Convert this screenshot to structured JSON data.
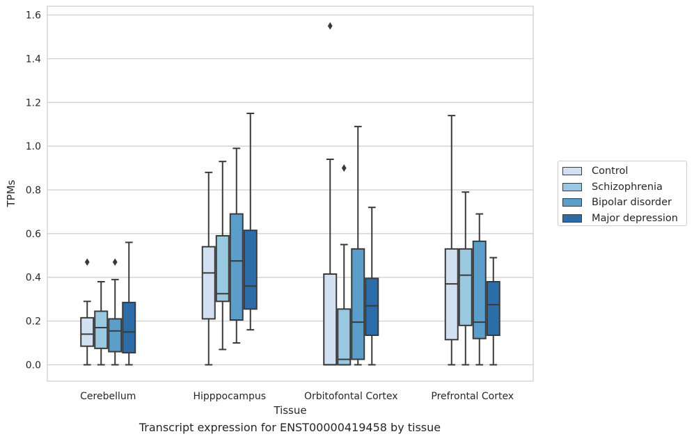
{
  "caption": "Transcript expression for ENST00000419458 by tissue",
  "chart_data": {
    "type": "box",
    "title": "",
    "xlabel": "Tissue",
    "ylabel": "TPMs",
    "ylim": [
      -0.075,
      1.64
    ],
    "yticks": [
      "0.0",
      "0.2",
      "0.4",
      "0.6",
      "0.8",
      "1.0",
      "1.2",
      "1.4",
      "1.6"
    ],
    "ytick_values": [
      0.0,
      0.2,
      0.4,
      0.6,
      0.8,
      1.0,
      1.2,
      1.4,
      1.6
    ],
    "grid": "horizontal",
    "legend_position": "right",
    "categories": [
      "Cerebellum",
      "Hipppocampus",
      "Orbitofontal Cortex",
      "Prefrontal Cortex"
    ],
    "series": [
      {
        "name": "Control",
        "color": "#d1e1f2",
        "boxes": [
          {
            "whislo": 0.0,
            "q1": 0.085,
            "med": 0.14,
            "q3": 0.215,
            "whishi": 0.29,
            "fliers": [
              0.47
            ]
          },
          {
            "whislo": 0.0,
            "q1": 0.21,
            "med": 0.42,
            "q3": 0.54,
            "whishi": 0.88,
            "fliers": []
          },
          {
            "whislo": 0.0,
            "q1": 0.0,
            "med": 0.0,
            "q3": 0.415,
            "whishi": 0.94,
            "fliers": [
              1.55
            ]
          },
          {
            "whislo": 0.0,
            "q1": 0.115,
            "med": 0.37,
            "q3": 0.53,
            "whishi": 1.14,
            "fliers": []
          }
        ]
      },
      {
        "name": "Schizophrenia",
        "color": "#9ac8e0",
        "boxes": [
          {
            "whislo": 0.0,
            "q1": 0.075,
            "med": 0.17,
            "q3": 0.245,
            "whishi": 0.38,
            "fliers": []
          },
          {
            "whislo": 0.07,
            "q1": 0.29,
            "med": 0.325,
            "q3": 0.59,
            "whishi": 0.93,
            "fliers": []
          },
          {
            "whislo": 0.0,
            "q1": 0.0,
            "med": 0.025,
            "q3": 0.255,
            "whishi": 0.55,
            "fliers": [
              0.9
            ]
          },
          {
            "whislo": 0.0,
            "q1": 0.18,
            "med": 0.41,
            "q3": 0.53,
            "whishi": 0.79,
            "fliers": []
          }
        ]
      },
      {
        "name": "Bipolar disorder",
        "color": "#5a9ec9",
        "boxes": [
          {
            "whislo": 0.0,
            "q1": 0.06,
            "med": 0.155,
            "q3": 0.21,
            "whishi": 0.39,
            "fliers": [
              0.47
            ]
          },
          {
            "whislo": 0.1,
            "q1": 0.205,
            "med": 0.475,
            "q3": 0.69,
            "whishi": 0.99,
            "fliers": []
          },
          {
            "whislo": 0.0,
            "q1": 0.025,
            "med": 0.195,
            "q3": 0.53,
            "whishi": 1.09,
            "fliers": []
          },
          {
            "whislo": 0.0,
            "q1": 0.12,
            "med": 0.195,
            "q3": 0.565,
            "whishi": 0.69,
            "fliers": []
          }
        ]
      },
      {
        "name": "Major depression",
        "color": "#2b6ca9",
        "boxes": [
          {
            "whislo": 0.0,
            "q1": 0.055,
            "med": 0.15,
            "q3": 0.285,
            "whishi": 0.56,
            "fliers": []
          },
          {
            "whislo": 0.16,
            "q1": 0.255,
            "med": 0.36,
            "q3": 0.615,
            "whishi": 1.15,
            "fliers": []
          },
          {
            "whislo": 0.0,
            "q1": 0.135,
            "med": 0.27,
            "q3": 0.395,
            "whishi": 0.72,
            "fliers": []
          },
          {
            "whislo": 0.0,
            "q1": 0.135,
            "med": 0.275,
            "q3": 0.38,
            "whishi": 0.49,
            "fliers": []
          }
        ]
      }
    ]
  }
}
